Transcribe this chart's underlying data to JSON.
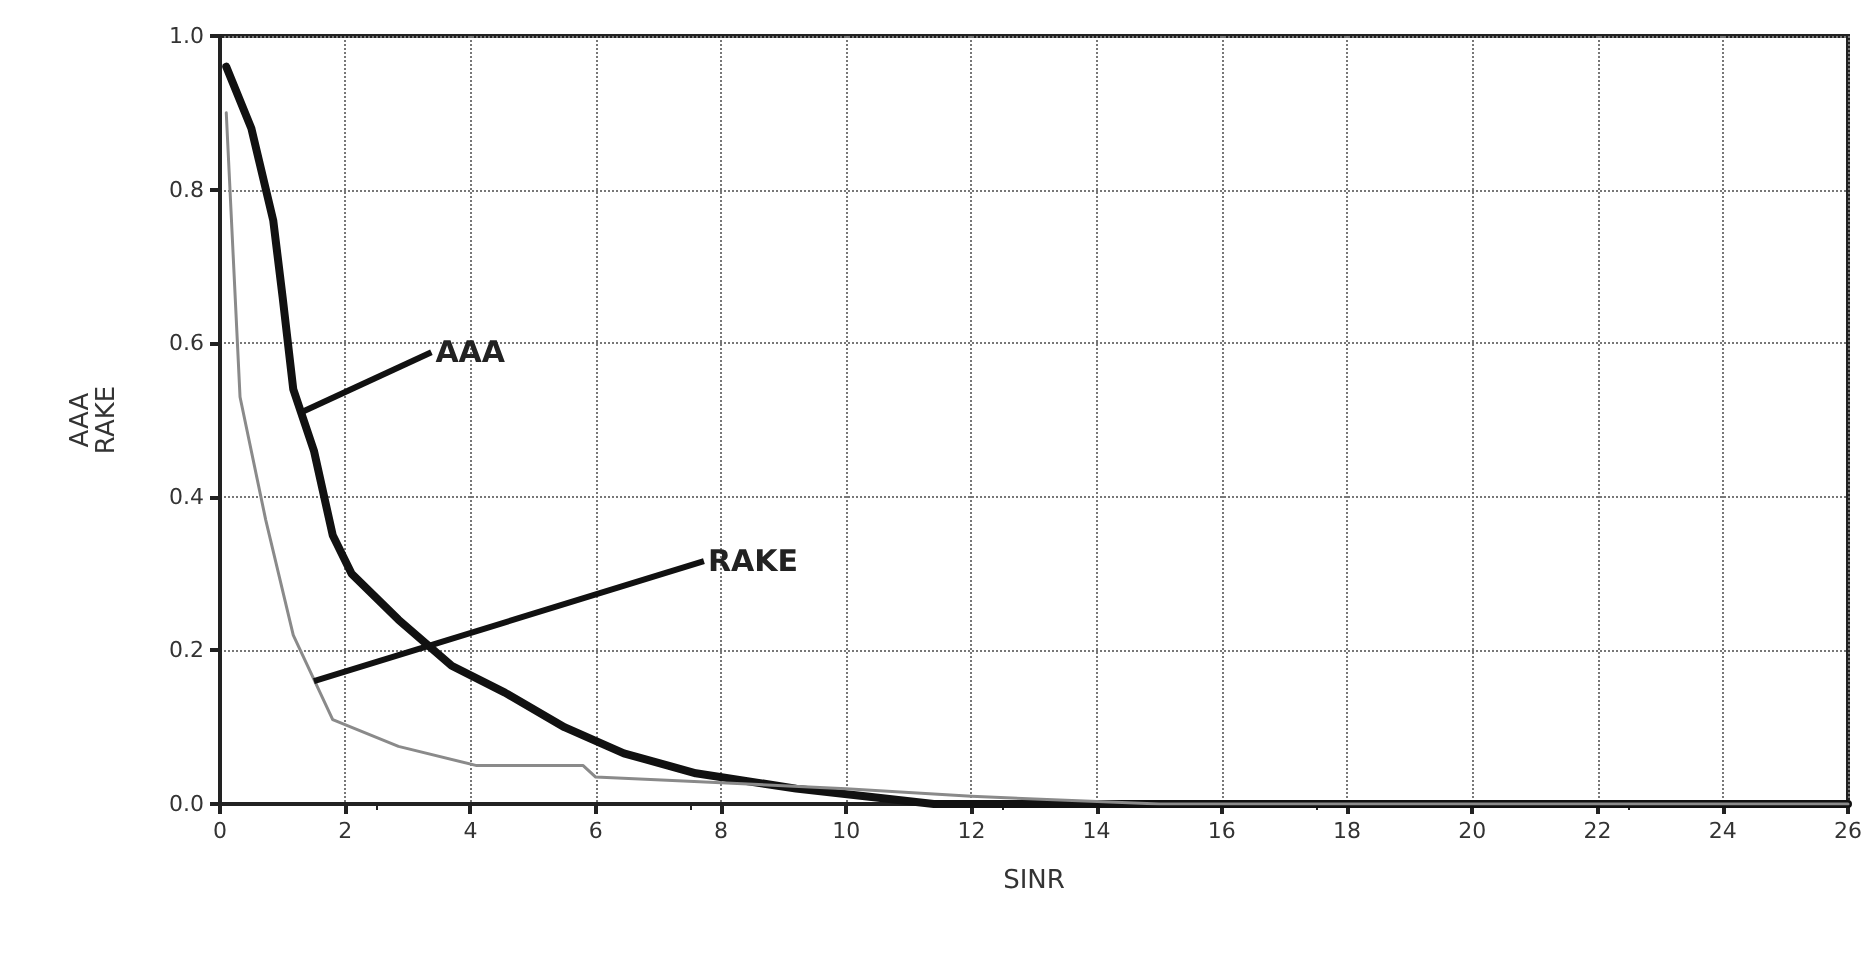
{
  "chart_data": {
    "type": "line",
    "xlabel": "SINR",
    "ylabel": "AAA\nRAKE",
    "xlim": [
      0,
      26
    ],
    "xticks": [
      0,
      2,
      4,
      6,
      8,
      10,
      12,
      14,
      16,
      18,
      20,
      22,
      24,
      26
    ],
    "ylim": [
      0,
      1
    ],
    "yticks": [
      {
        "value": 0,
        "label": "0.0"
      },
      0.2,
      0.4,
      0.6,
      0.8,
      {
        "value": 1,
        "label": "1.0"
      }
    ],
    "grid": true,
    "marker": "none",
    "series": [
      {
        "color": "#111111",
        "x": [
          0.1,
          0.5,
          0.85,
          1.0,
          1.17,
          1.5,
          1.8,
          2.1,
          2.85,
          3.7,
          4.55,
          5.5,
          6.45,
          7.6,
          9.2,
          10.3,
          11.4,
          14,
          18,
          22,
          26
        ],
        "values": [
          0.96,
          0.88,
          0.76,
          0.66,
          0.54,
          0.46,
          0.35,
          0.3,
          0.24,
          0.18,
          0.145,
          0.1,
          0.066,
          0.04,
          0.02,
          0.01,
          0.0,
          0.0,
          0.0,
          0.0,
          0.0
        ]
      },
      {
        "color": "#8a8a8a",
        "x": [
          0.1,
          0.32,
          0.73,
          1.17,
          1.8,
          2.85,
          4.1,
          5.8,
          6.0,
          7.4,
          10,
          12,
          15,
          20,
          26
        ],
        "values": [
          0.9,
          0.53,
          0.37,
          0.22,
          0.11,
          0.075,
          0.05,
          0.05,
          0.035,
          0.03,
          0.02,
          0.01,
          0.0,
          0.0,
          0.0
        ]
      }
    ],
    "annotations": [
      {
        "text": "AAA",
        "x": 1.3,
        "y": 0.51
      },
      {
        "text": "RAKE",
        "x": 1.5,
        "y": 0.16
      }
    ]
  }
}
